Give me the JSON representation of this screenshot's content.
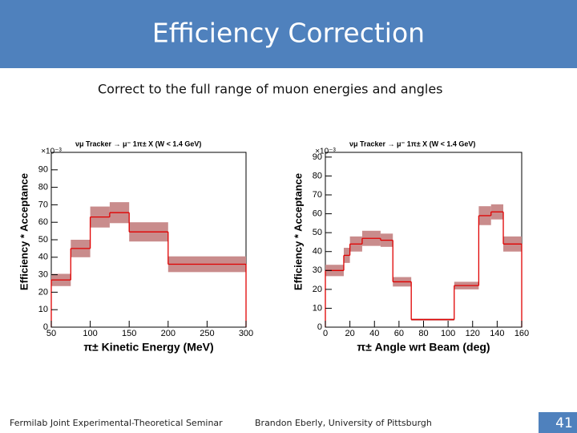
{
  "slide": {
    "title": "Efficiency Correction",
    "subtitle": "Correct to the full range of muon energies and angles",
    "footer_left": "Fermilab Joint Experimental-Theoretical Seminar",
    "footer_center": "Brandon Eberly, University of Pittsburgh",
    "page_number": "41"
  },
  "chart_data": [
    {
      "type": "histogram",
      "title": "νμ Tracker → μ⁻ 1π± X (W < 1.4 GeV)",
      "x_label": "π± Kinetic Energy (MeV)",
      "y_label": "Efficiency * Acceptance",
      "y_multiplier": "×10⁻³",
      "bins": [
        50,
        75,
        100,
        125,
        150,
        200,
        300
      ],
      "values": [
        27,
        45,
        63,
        65.5,
        54.5,
        36
      ],
      "errors": [
        3.5,
        5,
        6,
        6,
        5.5,
        4.5
      ],
      "color": "#e00000",
      "band_color": "#c98c8c",
      "xlim": [
        50,
        300
      ],
      "xticks": [
        50,
        100,
        150,
        200,
        250,
        300
      ],
      "ylim": [
        0,
        100
      ],
      "yticks": [
        0,
        10,
        20,
        30,
        40,
        50,
        60,
        70,
        80,
        90
      ]
    },
    {
      "type": "histogram",
      "title": "νμ Tracker → μ⁻ 1π± X (W < 1.4 GeV)",
      "x_label": "π± Angle wrt Beam (deg)",
      "y_label": "Efficiency * Acceptance",
      "y_multiplier": "×10⁻³",
      "bins": [
        0,
        15,
        20,
        30,
        45,
        55,
        70,
        105,
        125,
        135,
        145,
        160
      ],
      "values": [
        30,
        38,
        44,
        47,
        46,
        24,
        4,
        22,
        59,
        61,
        44
      ],
      "errors": [
        3,
        4,
        4,
        4,
        3.5,
        2.5,
        0.5,
        2,
        5,
        4,
        4
      ],
      "color": "#e00000",
      "band_color": "#c98c8c",
      "xlim": [
        0,
        160
      ],
      "xticks": [
        0,
        20,
        40,
        60,
        80,
        100,
        120,
        140,
        160
      ],
      "ylim": [
        0,
        92.5
      ],
      "yticks": [
        0,
        10,
        20,
        30,
        40,
        50,
        60,
        70,
        80,
        90
      ]
    }
  ]
}
